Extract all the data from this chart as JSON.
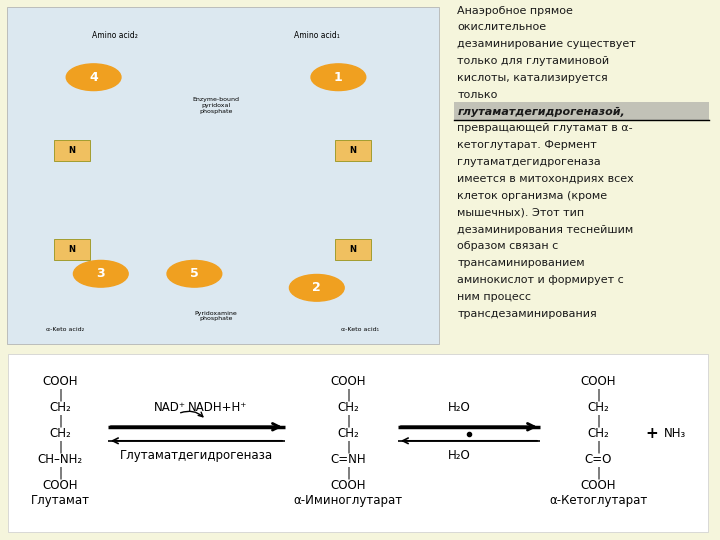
{
  "bg_top": "#f5f5dc",
  "bg_diagram": "#dce8f0",
  "text_right": "Анаэробное прямое\nокислительное\nдезаминирование существует\nтолько для глутаминовой\nкислоты, катализируется\nтолько\nглутаматдегидрогеназой,\nпревращающей глутамат в α-\nкетоглутарат. Фермент\nглутаматдегидрогеназа\nимеется в митохондриях всех\nклеток организма (кроме\nмышечных). Этот тип\nдезаминирования теснейшим\nобразом связан с\nтрансаминированием\nаминокислот и формирует с\nним процесс\nтрансдезаминирования",
  "highlighted_line": "глутаматдегидрогеназой,",
  "text_color": "#1a1a1a",
  "glutamate_label": "Глутамат",
  "imino_label": "α-Иминоглутарат",
  "keto_label": "α-Кетоглутарат",
  "enzyme_label": "Глутаматдегидрогеназа",
  "nad_label": "NAD⁺",
  "nadh_label": "NADH+H⁺",
  "h2o_label1": "H₂O",
  "h2o_label2": "H₂O",
  "nh3_label": "NH₃",
  "plus_label": "+"
}
